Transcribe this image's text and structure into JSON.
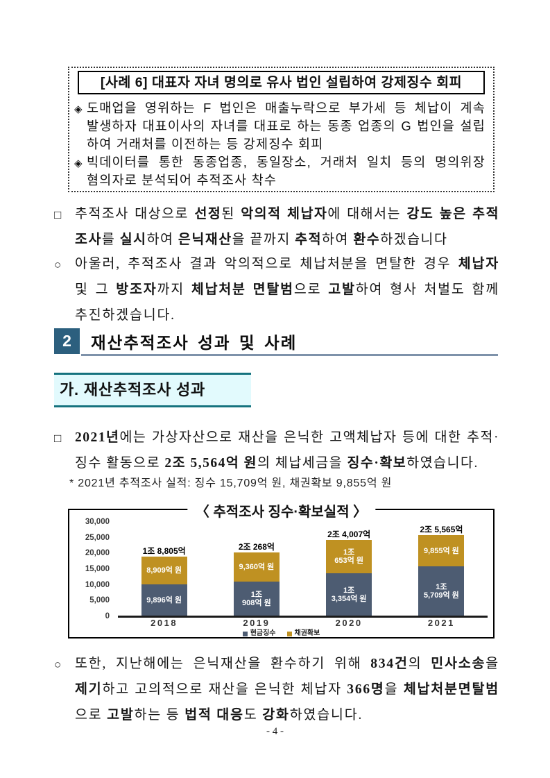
{
  "case_box": {
    "title": "[사례 6] 대표자 자녀 명의로 유사 법인 설립하여 강제징수 회피",
    "bullet_icon": "◈",
    "bullets": [
      {
        "segments": [
          [
            "도매업을 영위하는 F 법인은 매출누락으로 부가세 등 체납이 계속 ",
            0
          ],
          [
            "발생하자",
            3
          ],
          [
            " 대표이사의 자녀를 대표로 하는 동종 업종의 G 법인을 설립하여 거래처를 이전하는 등 강제징수 회피",
            0
          ]
        ]
      },
      {
        "segments": [
          [
            "빅데이터를 통한 동종업종, 동일장소, 거래처 일치 등의 명의위장 ",
            0
          ],
          [
            "혐의자로",
            3
          ],
          [
            " 분석되어 추적조사 착수",
            0
          ]
        ]
      }
    ]
  },
  "paragraphs": {
    "p1": {
      "marker": "□",
      "segments": [
        [
          "추적조사 대상으로 ",
          0
        ],
        [
          "선정",
          1
        ],
        [
          "된 ",
          0
        ],
        [
          "악의적 체납자",
          1
        ],
        [
          "에 대해서는 ",
          0
        ],
        [
          "강도 높은 추적조사",
          1
        ],
        [
          "를 ",
          0
        ],
        [
          "실시",
          1
        ],
        [
          "하여 ",
          0
        ],
        [
          "은닉재산",
          1
        ],
        [
          "을 끝까지 ",
          0
        ],
        [
          "추적",
          1
        ],
        [
          "하여 ",
          0
        ],
        [
          "환수",
          1
        ],
        [
          "하겠습니다",
          0
        ]
      ]
    },
    "p2": {
      "marker": "○",
      "segments": [
        [
          "아울러, 추적조사 결과 악의적으로 체납처분을 면탈한 경우 ",
          0
        ],
        [
          "체납자",
          1
        ],
        [
          " 및 그 ",
          0
        ],
        [
          "방조자",
          1
        ],
        [
          "까지 ",
          0
        ],
        [
          "체납처분 면탈범",
          1
        ],
        [
          "으로 ",
          0
        ],
        [
          "고발",
          1
        ],
        [
          "하여 형사 처벌도 함께 추진하겠습니다.",
          0
        ]
      ]
    },
    "p3": {
      "marker": "□",
      "segments": [
        [
          "2021년",
          1
        ],
        [
          "에는 가상자산으로 재산을 은닉한 고액체납자 등에 대한 추적·징수 활동으로 ",
          0
        ],
        [
          "2조 5,564억 원",
          1
        ],
        [
          "의 체납세금을 ",
          0
        ],
        [
          "징수·확보",
          1
        ],
        [
          "하였습니다.",
          0
        ]
      ]
    },
    "p4": {
      "marker": "○",
      "segments": [
        [
          "또한, 지난해에는 은닉재산을 환수하기 위해 ",
          0
        ],
        [
          "834건",
          1
        ],
        [
          "의 ",
          0
        ],
        [
          "민사소송",
          1
        ],
        [
          "을 ",
          0
        ],
        [
          "제기",
          2
        ],
        [
          "하고 고의적으로 재산을 은닉한 체납자 ",
          0
        ],
        [
          "366명",
          1
        ],
        [
          "을 ",
          0
        ],
        [
          "체납처분면탈범",
          1
        ],
        [
          "으로 ",
          0
        ],
        [
          "고발",
          1
        ],
        [
          "하는 등 ",
          0
        ],
        [
          "법적 대응",
          1
        ],
        [
          "도 ",
          0
        ],
        [
          "강화",
          1
        ],
        [
          "하였습니다.",
          0
        ]
      ]
    }
  },
  "section": {
    "number": "2",
    "title": "재산추적조사 성과 및 사례"
  },
  "subsection": {
    "title": "가. 재산추적조사 성과"
  },
  "footnote": "* 2021년 추적조사 실적: 징수 15,709억 원, 채권확보 9,855억 원",
  "chart_data": {
    "type": "bar",
    "stacked": true,
    "title": "〈 추적조사 징수·확보실적 〉",
    "categories": [
      "2018",
      "2019",
      "2020",
      "2021"
    ],
    "series": [
      {
        "name": "현금징수",
        "color": "#4d5c72",
        "values": [
          9896,
          10908,
          13354,
          15709
        ],
        "bar_labels": [
          "9,896억 원",
          "1조\n908억 원",
          "1조\n3,354억 원",
          "1조\n5,709억 원"
        ]
      },
      {
        "name": "채권확보",
        "color": "#bf9122",
        "values": [
          8909,
          9360,
          10653,
          9855
        ],
        "bar_labels": [
          "8,909억 원",
          "9,360억 원",
          "1조\n653억 원",
          "9,855억 원"
        ]
      }
    ],
    "totals": [
      "1조 8,805억",
      "2조 268억",
      "2조 4,007억",
      "2조 5,565억"
    ],
    "ylim": [
      0,
      30000
    ],
    "ytick_values": [
      0,
      5000,
      10000,
      15000,
      20000,
      25000,
      30000
    ],
    "ytick_labels": [
      "0",
      "5,000",
      "10,000",
      "15,000",
      "20,000",
      "25,000",
      "30,000"
    ],
    "legend_position": "bottom",
    "grid": false
  },
  "page_number": "- 4 -",
  "colors": {
    "section_badge": "#2c5f7e",
    "section_underline": "#7e92aa",
    "subsection_bg": "#e2fafd",
    "subsection_border": "#15727e",
    "bar_cash": "#4d5c72",
    "bar_bond": "#bf9122"
  }
}
